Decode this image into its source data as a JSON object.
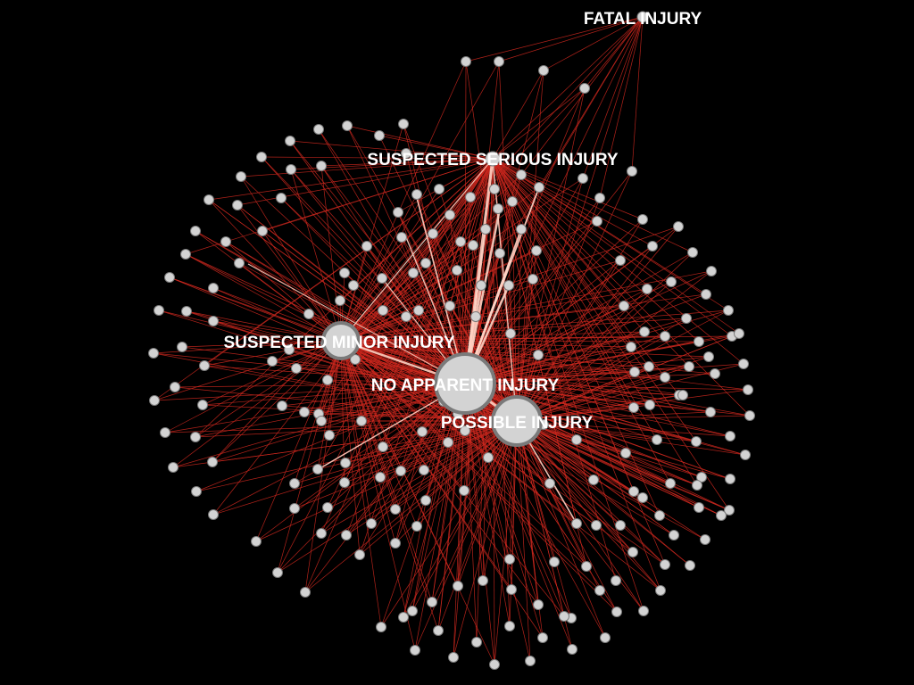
{
  "graph": {
    "background": "#000000",
    "edge_color": "#d0281e",
    "heavy_edge_color": "#ffd2c3",
    "node_fill": "#d3d3d3",
    "node_stroke": "#7a7a7a",
    "hubs": [
      {
        "id": "fatal",
        "label": "FATAL INJURY"
      },
      {
        "id": "serious",
        "label": "SUSPECTED SERIOUS INJURY"
      },
      {
        "id": "minor",
        "label": "SUSPECTED MINOR INJURY"
      },
      {
        "id": "none",
        "label": "NO APPARENT INJURY"
      },
      {
        "id": "possible",
        "label": "POSSIBLE INJURY"
      }
    ]
  }
}
